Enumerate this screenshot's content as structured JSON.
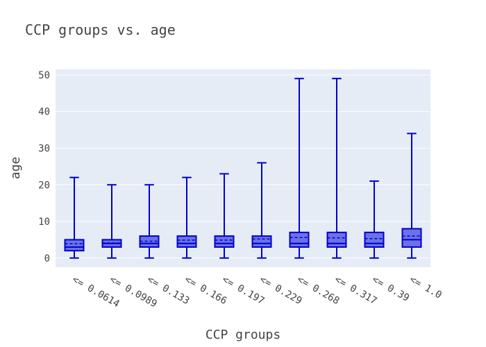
{
  "chart_data": {
    "type": "box",
    "title": "CCP groups vs. age",
    "xlabel": "CCP groups",
    "ylabel": "age",
    "ylim": [
      -2.5,
      51.5
    ],
    "yticks": [
      0,
      10,
      20,
      30,
      40,
      50
    ],
    "yticklabels": [
      "0",
      "10",
      "20",
      "30",
      "40",
      "50"
    ],
    "grid": true,
    "legend": "none",
    "colors": {
      "plot_bg": "#E5ECF6",
      "box_fill": "#6B72E6",
      "box_line": "#0000CC",
      "grid": "#FFFFFF"
    },
    "categories": [
      "<= 0.0614",
      "<= 0.0989",
      "<= 0.133",
      "<= 0.166",
      "<= 0.197",
      "<= 0.229",
      "<= 0.268",
      "<= 0.317",
      "<= 0.39",
      "<= 1.0"
    ],
    "boxes": [
      {
        "min": 0,
        "q1": 2,
        "median": 3,
        "q3": 5,
        "max": 22,
        "mean": 3.9
      },
      {
        "min": 0,
        "q1": 3,
        "median": 4,
        "q3": 5,
        "max": 20,
        "mean": 4.1
      },
      {
        "min": 0,
        "q1": 3,
        "median": 4,
        "q3": 6,
        "max": 20,
        "mean": 4.6
      },
      {
        "min": 0,
        "q1": 3,
        "median": 4,
        "q3": 6,
        "max": 22,
        "mean": 4.9
      },
      {
        "min": 0,
        "q1": 3,
        "median": 4,
        "q3": 6,
        "max": 23,
        "mean": 4.9
      },
      {
        "min": 0,
        "q1": 3,
        "median": 4,
        "q3": 6,
        "max": 26,
        "mean": 5.2
      },
      {
        "min": 0,
        "q1": 3,
        "median": 4,
        "q3": 7,
        "max": 49,
        "mean": 5.6
      },
      {
        "min": 0,
        "q1": 3,
        "median": 4,
        "q3": 7,
        "max": 49,
        "mean": 5.5
      },
      {
        "min": 0,
        "q1": 3,
        "median": 4,
        "q3": 7,
        "max": 21,
        "mean": 5.3
      },
      {
        "min": 0,
        "q1": 3,
        "median": 5,
        "q3": 8,
        "max": 34,
        "mean": 6.0
      }
    ]
  }
}
